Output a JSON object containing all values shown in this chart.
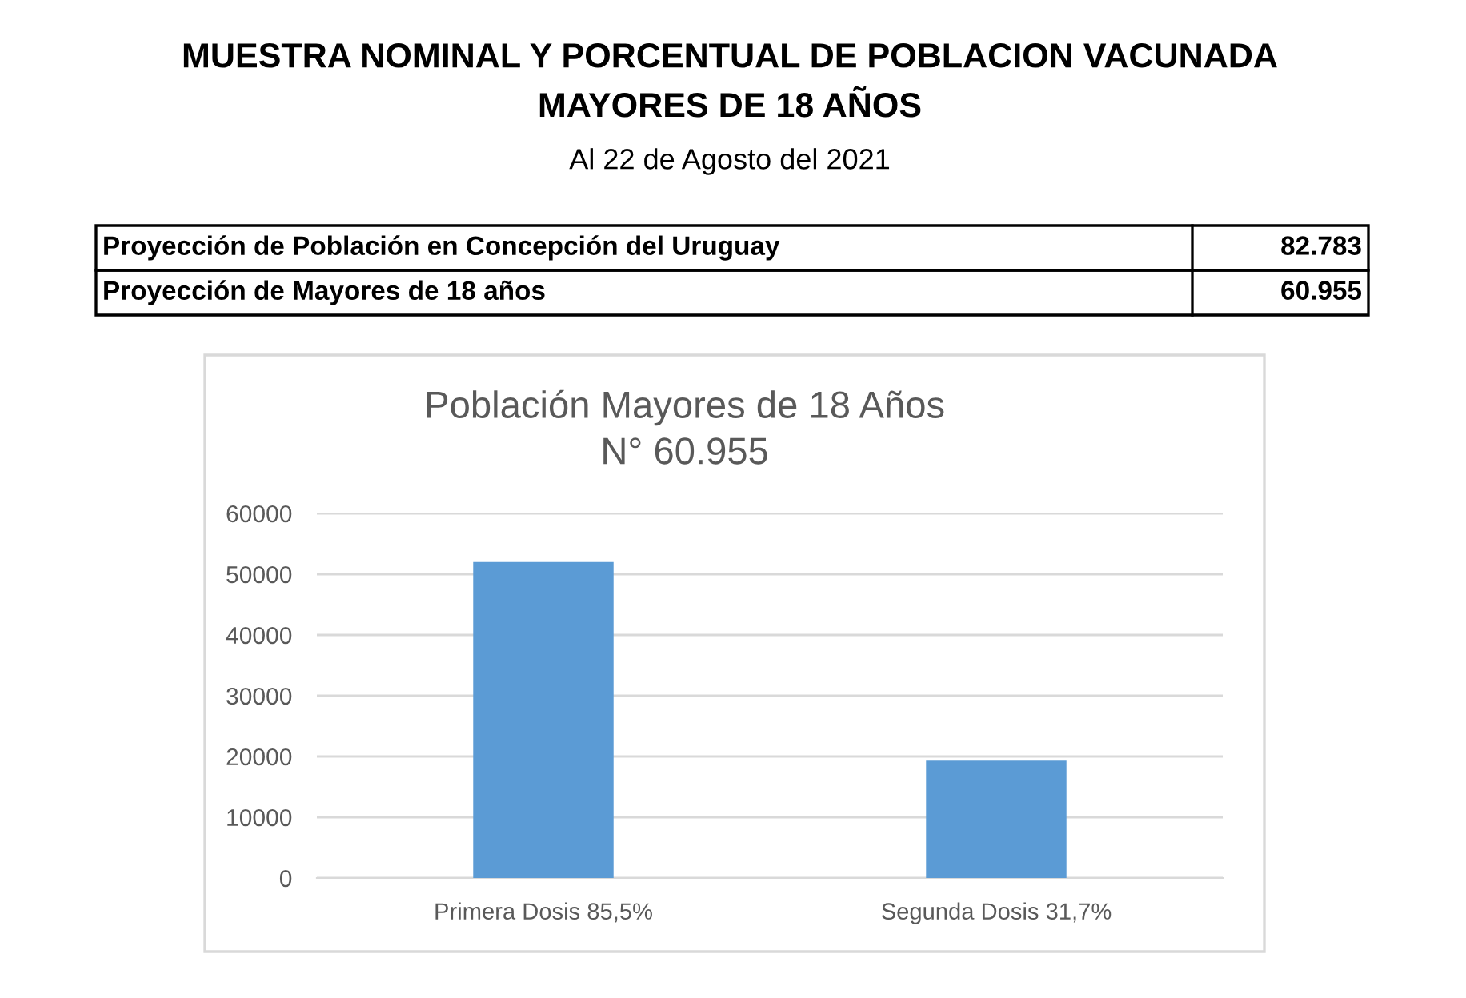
{
  "chart_data": [
    {
      "type": "other",
      "title": "MUESTRA NOMINAL Y PORCENTUAL DE POBLACION VACUNADA\nMAYORES DE 18 AÑOS",
      "subtitle": "Al 22 de Agosto del 2021",
      "categories": [
        "Proyección de Población en Concepción del Uruguay",
        "Proyección de Mayores de 18 años"
      ],
      "values": [
        82783,
        60955
      ],
      "value_labels": [
        "82.783",
        "60.955"
      ]
    },
    {
      "type": "bar",
      "title": "Población Mayores de 18 Años\nN° 60.955",
      "categories": [
        "Primera Dosis 85,5%",
        "Segunda Dosis 31,7%"
      ],
      "values": [
        52000,
        19300
      ],
      "color": "#5b9bd5",
      "ylim": [
        0,
        60000
      ],
      "yticks": [
        0,
        10000,
        20000,
        30000,
        40000,
        50000,
        60000
      ],
      "grid": "y"
    }
  ]
}
